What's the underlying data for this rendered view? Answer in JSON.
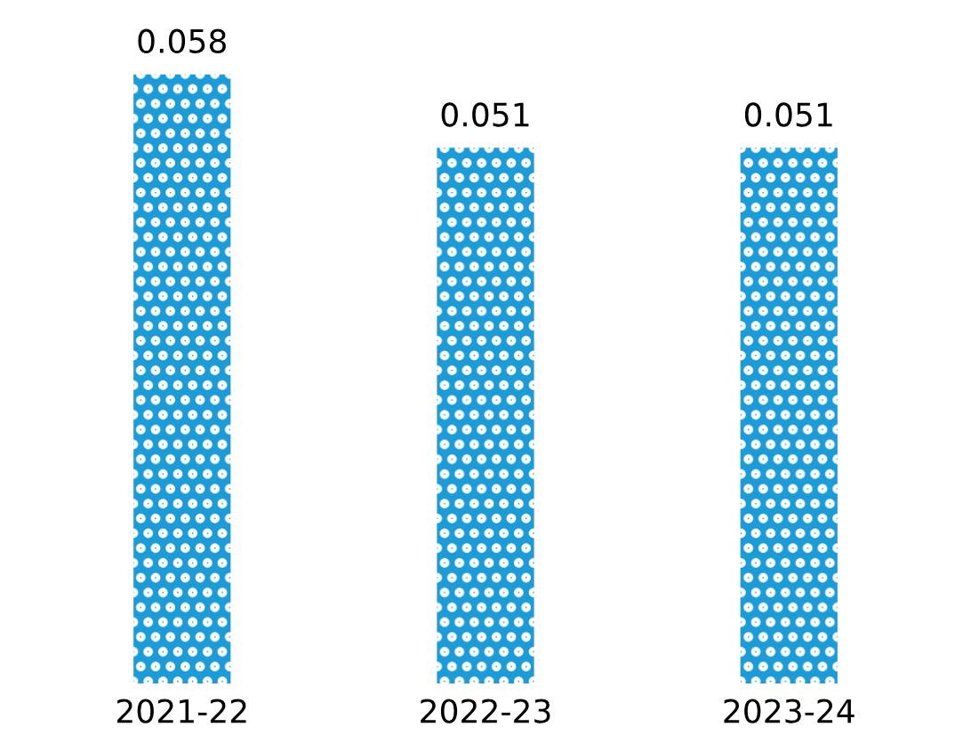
{
  "chart_data": {
    "type": "bar",
    "categories": [
      "2021-22",
      "2022-23",
      "2023-24"
    ],
    "values": [
      0.058,
      0.051,
      0.051
    ],
    "color": "#1b9bd7",
    "data_labels": true,
    "grid": false,
    "legend": false
  }
}
